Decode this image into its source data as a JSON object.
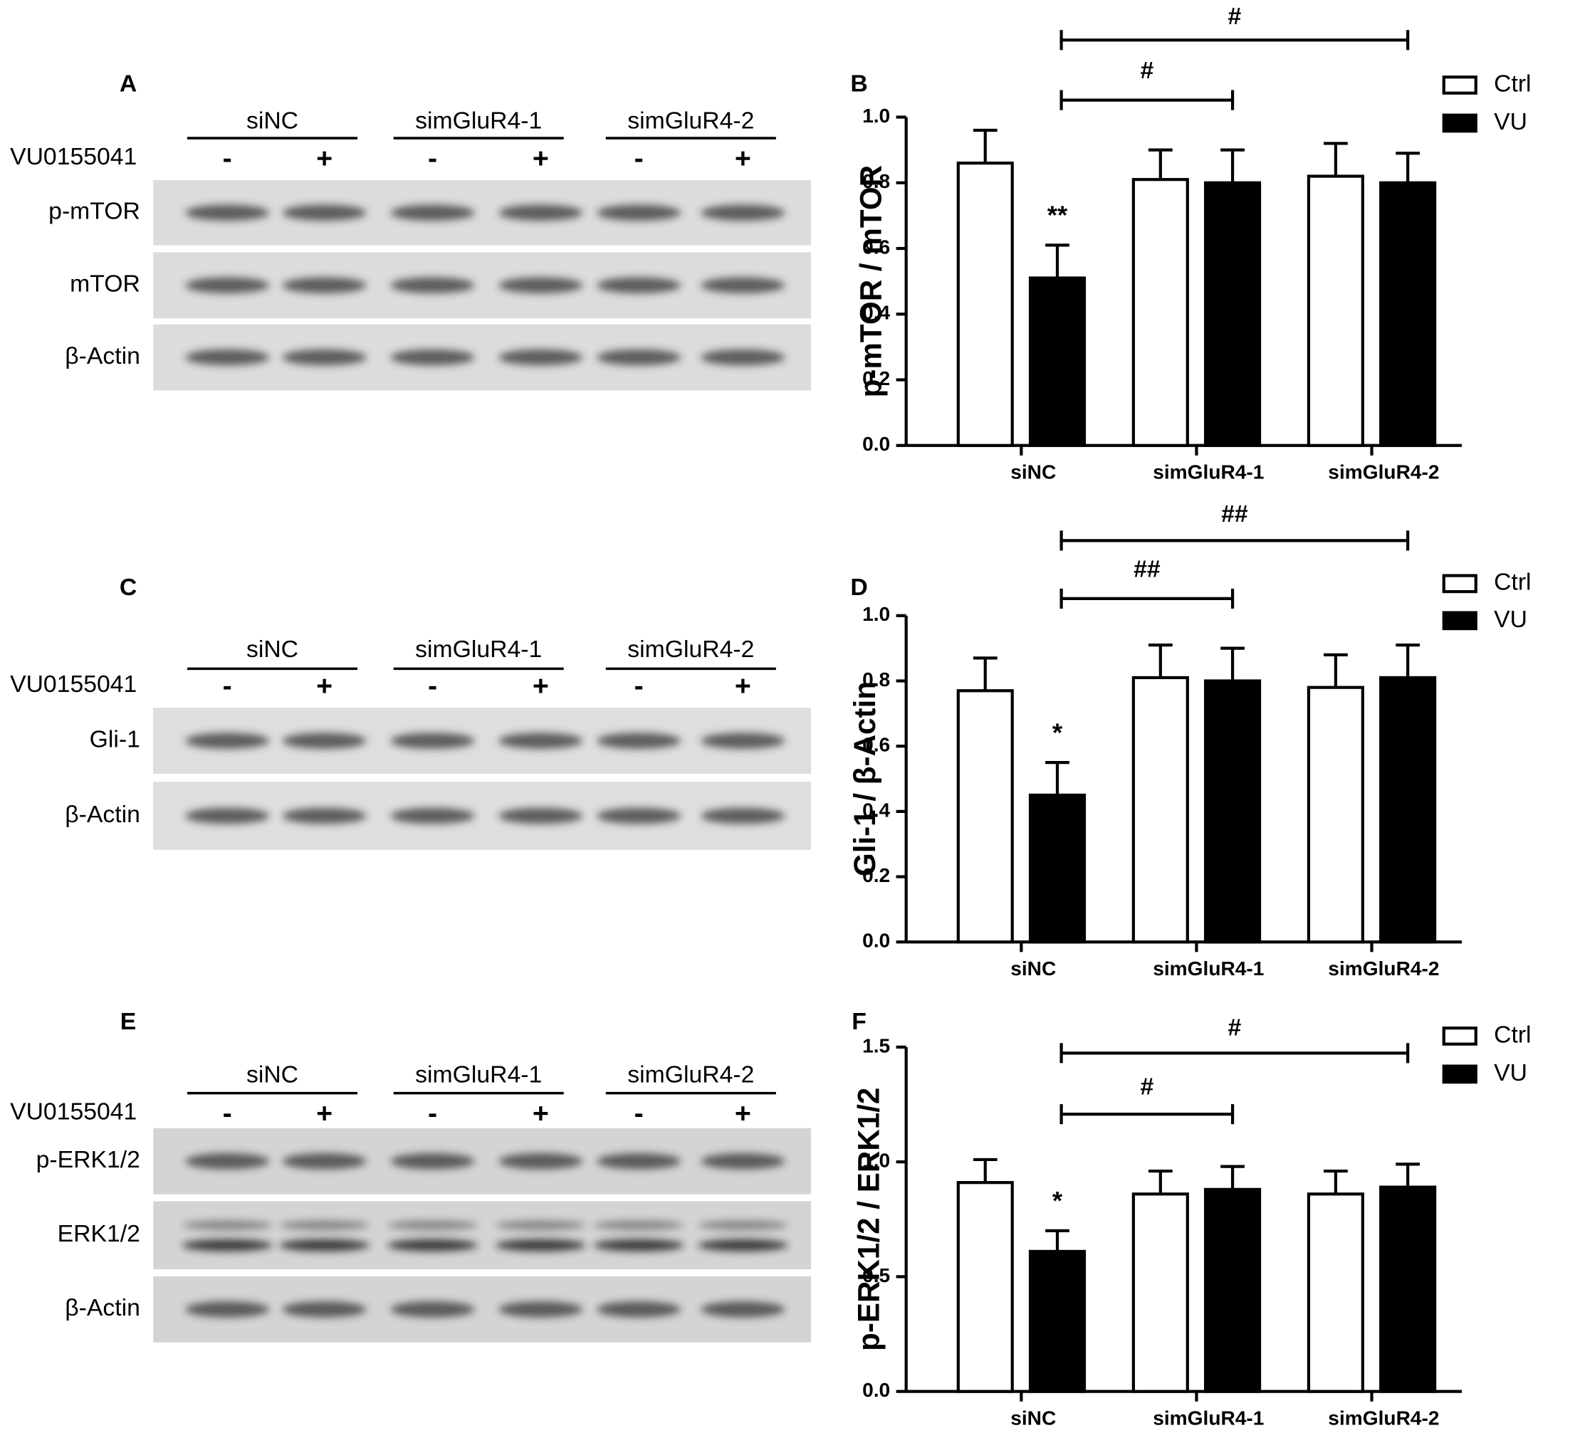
{
  "blots": [
    {
      "panel": "A",
      "groups": [
        "siNC",
        "simGluR4-1",
        "simGluR4-2"
      ],
      "treatment": "VU0155041",
      "signs": [
        "-",
        "+",
        "-",
        "+",
        "-",
        "+"
      ],
      "rows": [
        "p-mTOR",
        "mTOR",
        "β-Actin"
      ]
    },
    {
      "panel": "C",
      "groups": [
        "siNC",
        "simGluR4-1",
        "simGluR4-2"
      ],
      "treatment": "VU0155041",
      "signs": [
        "-",
        "+",
        "-",
        "+",
        "-",
        "+"
      ],
      "rows": [
        "Gli-1",
        "β-Actin"
      ]
    },
    {
      "panel": "E",
      "groups": [
        "siNC",
        "simGluR4-1",
        "simGluR4-2"
      ],
      "treatment": "VU0155041",
      "signs": [
        "-",
        "+",
        "-",
        "+",
        "-",
        "+"
      ],
      "rows": [
        "p-ERK1/2",
        "ERK1/2",
        "β-Actin"
      ]
    }
  ],
  "chart_data": [
    {
      "type": "bar",
      "panel": "B",
      "ylabel": "p-mTOR / mTOR",
      "categories": [
        "siNC",
        "simGluR4-1",
        "simGluR4-2"
      ],
      "series": [
        {
          "name": "Ctrl",
          "color": "#ffffff",
          "values": [
            0.86,
            0.81,
            0.82
          ],
          "errors": [
            0.1,
            0.09,
            0.1
          ]
        },
        {
          "name": "VU",
          "color": "#000000",
          "values": [
            0.51,
            0.8,
            0.8
          ],
          "errors": [
            0.1,
            0.1,
            0.09
          ]
        }
      ],
      "ylim": [
        0,
        1
      ],
      "yticks": [
        {
          "value": 0,
          "label": "0.0"
        },
        0.2,
        0.4,
        0.6,
        0.8,
        {
          "value": 1,
          "label": "1.0"
        }
      ],
      "annotations": [
        "**",
        "#",
        "#"
      ]
    },
    {
      "type": "bar",
      "panel": "D",
      "ylabel": "Gli-1 / β-Actin",
      "categories": [
        "siNC",
        "simGluR4-1",
        "simGluR4-2"
      ],
      "series": [
        {
          "name": "Ctrl",
          "color": "#ffffff",
          "values": [
            0.77,
            0.81,
            0.78
          ],
          "errors": [
            0.1,
            0.1,
            0.1
          ]
        },
        {
          "name": "VU",
          "color": "#000000",
          "values": [
            0.45,
            0.8,
            0.81
          ],
          "errors": [
            0.1,
            0.1,
            0.1
          ]
        }
      ],
      "ylim": [
        0,
        1
      ],
      "yticks": [
        {
          "value": 0,
          "label": "0.0"
        },
        0.2,
        0.4,
        0.6,
        0.8,
        {
          "value": 1,
          "label": "1.0"
        }
      ],
      "annotations": [
        "*",
        "##",
        "##"
      ]
    },
    {
      "type": "bar",
      "panel": "F",
      "ylabel": "p-ERK1/2 / ERK1/2",
      "categories": [
        "siNC",
        "simGluR4-1",
        "simGluR4-2"
      ],
      "series": [
        {
          "name": "Ctrl",
          "color": "#ffffff",
          "values": [
            0.91,
            0.86,
            0.86
          ],
          "errors": [
            0.1,
            0.1,
            0.1
          ]
        },
        {
          "name": "VU",
          "color": "#000000",
          "values": [
            0.61,
            0.88,
            0.89
          ],
          "errors": [
            0.09,
            0.1,
            0.1
          ]
        }
      ],
      "ylim": [
        0,
        1.5
      ],
      "yticks": [
        {
          "value": 0,
          "label": "0.0"
        },
        0.5,
        {
          "value": 1,
          "label": "1.0"
        },
        1.5
      ],
      "annotations": [
        "*",
        "#",
        "#"
      ]
    }
  ]
}
